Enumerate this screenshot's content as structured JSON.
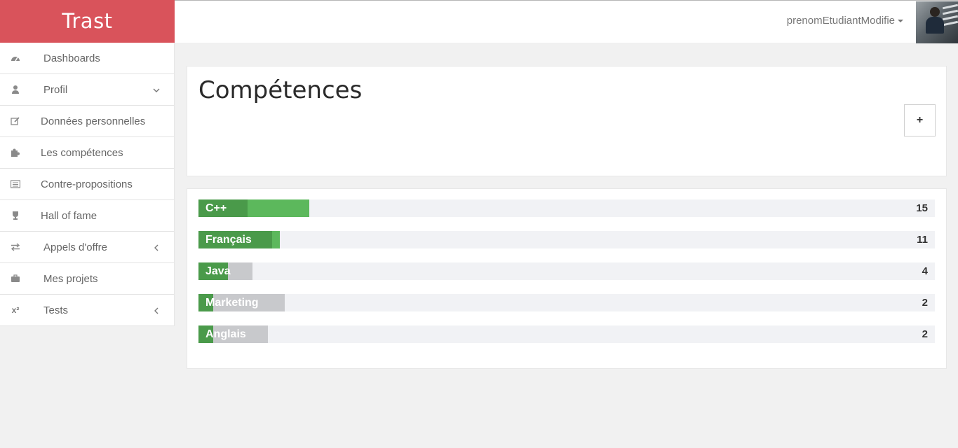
{
  "brand": {
    "name": "Trast",
    "color": "#d9535b"
  },
  "header": {
    "username": "prenomEtudiantModifie"
  },
  "sidebar": {
    "items": [
      {
        "label": "Dashboards",
        "icon": "dashboard-icon"
      },
      {
        "label": "Profil",
        "icon": "user-icon",
        "chevron": "down"
      },
      {
        "label": "Données personnelles",
        "icon": "edit-icon"
      },
      {
        "label": "Les compétences",
        "icon": "puzzle-icon"
      },
      {
        "label": "Contre-propositions",
        "icon": "list-icon"
      },
      {
        "label": "Hall of fame",
        "icon": "trophy-icon"
      },
      {
        "label": "Appels d'offre",
        "icon": "exchange-icon",
        "chevron": "left"
      },
      {
        "label": "Mes projets",
        "icon": "briefcase-icon"
      },
      {
        "label": "Tests",
        "icon": "superscript-icon",
        "icon_text": "x²",
        "chevron": "left"
      }
    ]
  },
  "main": {
    "title": "Compétences",
    "add_label": "+"
  },
  "skills": [
    {
      "name": "C++",
      "count": "15",
      "dark_fraction": 0.0667,
      "light_fraction": 0.15,
      "gray_fraction": 0.0
    },
    {
      "name": "Français",
      "count": "11",
      "dark_fraction": 0.1,
      "light_fraction": 0.11,
      "gray_fraction": 0.0
    },
    {
      "name": "Java",
      "count": "4",
      "dark_fraction": 0.04,
      "light_fraction": 0.0,
      "gray_fraction": 0.073
    },
    {
      "name": "Marketing",
      "count": "2",
      "dark_fraction": 0.02,
      "light_fraction": 0.0,
      "gray_fraction": 0.117
    },
    {
      "name": "Anglais",
      "count": "2",
      "dark_fraction": 0.02,
      "light_fraction": 0.0,
      "gray_fraction": 0.094
    }
  ],
  "colors": {
    "green_dark": "#4a9a4a",
    "green_light": "#5cb85c",
    "gray_bar": "#c8c9cc",
    "track": "#f1f2f5"
  }
}
